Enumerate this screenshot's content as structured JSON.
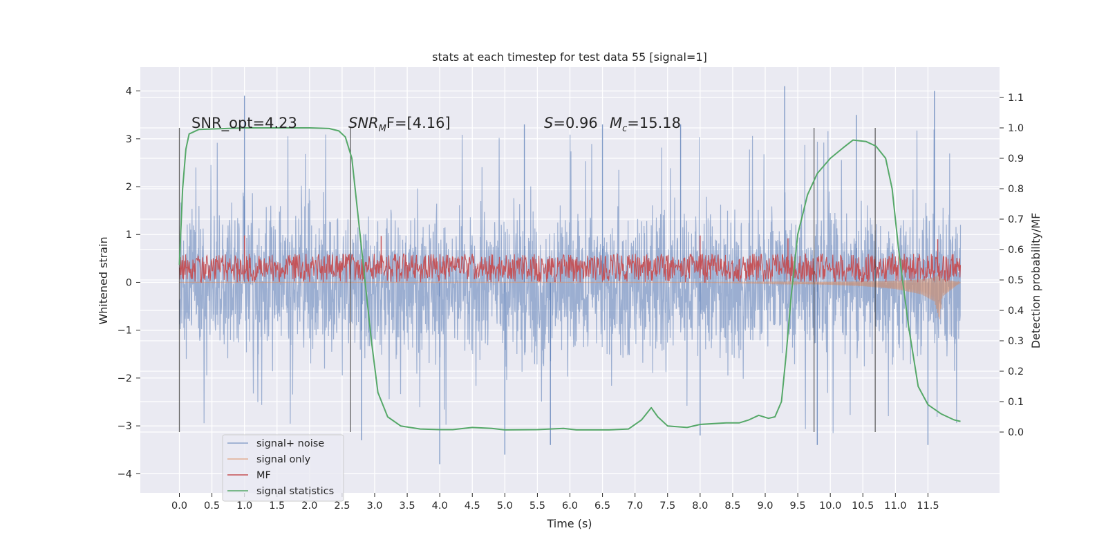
{
  "chart_data": {
    "type": "line",
    "title": "stats at each timestep for test data 55 [signal=1]",
    "xlabel": "Time (s)",
    "ylabel_left": "Whitened strain",
    "ylabel_right": "Detection probability/MF",
    "xlim": [
      -0.6,
      12.6
    ],
    "ylim_left": [
      -4.4,
      4.5
    ],
    "ylim_right": [
      -0.2,
      1.2
    ],
    "x_ticks": [
      "0.0",
      "0.5",
      "1.0",
      "1.5",
      "2.0",
      "2.5",
      "3.0",
      "3.5",
      "4.0",
      "4.5",
      "5.0",
      "5.5",
      "6.0",
      "6.5",
      "7.0",
      "7.5",
      "8.0",
      "8.5",
      "9.0",
      "9.5",
      "10.0",
      "10.5",
      "11.0",
      "11.5"
    ],
    "y_ticks_left": [
      "4",
      "3",
      "2",
      "1",
      "0",
      "−1",
      "−2",
      "−3",
      "−4"
    ],
    "y_ticks_right": [
      "1.1",
      "1.0",
      "0.9",
      "0.8",
      "0.7",
      "0.6",
      "0.5",
      "0.4",
      "0.3",
      "0.2",
      "0.1",
      "0.0"
    ],
    "grid": true,
    "background": "#eaeaf2",
    "legend_position": "lower-left",
    "annotations": {
      "snr_opt": "SNR_opt=4.23",
      "snr_mf_sym": "SNR",
      "snr_mf_sub": "M",
      "snr_mf_rest": "F=[4.16]",
      "s_sym": "S",
      "s_val": "=0.96",
      "mc_sym": "M",
      "mc_sub": "c",
      "mc_val": "=15.18"
    },
    "vertical_markers_s": [
      0.0,
      2.63,
      9.75,
      10.69
    ],
    "series": [
      {
        "name": "signal+ noise",
        "axis": "left",
        "color": "#4c72b0",
        "opacity": 0.5,
        "x_range": [
          0.0,
          12.0
        ],
        "envelope_typical": [
          -2.2,
          2.0
        ],
        "spikes": [
          [
            1.0,
            3.9
          ],
          [
            5.3,
            3.3
          ],
          [
            6.5,
            3.3
          ],
          [
            7.7,
            3.3
          ],
          [
            9.3,
            4.1
          ],
          [
            10.4,
            3.5
          ],
          [
            11.6,
            4.0
          ],
          [
            4.0,
            -3.8
          ],
          [
            5.0,
            -3.6
          ],
          [
            5.7,
            -3.4
          ],
          [
            9.8,
            -3.4
          ],
          [
            11.5,
            -3.4
          ],
          [
            2.8,
            -3.3
          ],
          [
            8.0,
            -3.2
          ]
        ]
      },
      {
        "name": "signal only",
        "axis": "left",
        "color": "#dd8452",
        "opacity": 0.5,
        "points": [
          [
            0.0,
            0.0
          ],
          [
            8.0,
            0.0
          ],
          [
            9.0,
            -0.02
          ],
          [
            10.0,
            -0.05
          ],
          [
            10.5,
            -0.08
          ],
          [
            11.0,
            -0.14
          ],
          [
            11.4,
            -0.25
          ],
          [
            11.6,
            -0.4
          ],
          [
            11.68,
            -0.8
          ],
          [
            11.72,
            -0.3
          ],
          [
            12.0,
            0.0
          ]
        ]
      },
      {
        "name": "MF",
        "axis": "left",
        "color": "#c44e52",
        "opacity": 0.95,
        "x_range": [
          0.0,
          12.0
        ],
        "baseline": 0.3,
        "band": [
          0.0,
          0.75
        ],
        "peaks": [
          [
            1.0,
            0.98
          ],
          [
            3.1,
            0.97
          ],
          [
            8.0,
            0.98
          ],
          [
            9.35,
            0.92
          ],
          [
            11.65,
            0.9
          ]
        ]
      },
      {
        "name": "signal statistics",
        "axis": "right",
        "color": "#55a868",
        "points": [
          [
            0.0,
            0.55
          ],
          [
            0.05,
            0.8
          ],
          [
            0.1,
            0.93
          ],
          [
            0.15,
            0.98
          ],
          [
            0.3,
            0.995
          ],
          [
            1.0,
            1.0
          ],
          [
            2.0,
            1.0
          ],
          [
            2.3,
            0.998
          ],
          [
            2.45,
            0.99
          ],
          [
            2.55,
            0.97
          ],
          [
            2.65,
            0.9
          ],
          [
            2.75,
            0.7
          ],
          [
            2.85,
            0.5
          ],
          [
            2.95,
            0.3
          ],
          [
            3.05,
            0.13
          ],
          [
            3.2,
            0.05
          ],
          [
            3.4,
            0.02
          ],
          [
            3.7,
            0.01
          ],
          [
            4.0,
            0.008
          ],
          [
            4.2,
            0.008
          ],
          [
            4.5,
            0.015
          ],
          [
            4.8,
            0.012
          ],
          [
            5.0,
            0.007
          ],
          [
            5.5,
            0.008
          ],
          [
            5.9,
            0.012
          ],
          [
            6.1,
            0.007
          ],
          [
            6.6,
            0.007
          ],
          [
            6.9,
            0.01
          ],
          [
            7.1,
            0.04
          ],
          [
            7.25,
            0.08
          ],
          [
            7.35,
            0.05
          ],
          [
            7.5,
            0.02
          ],
          [
            7.8,
            0.015
          ],
          [
            8.0,
            0.025
          ],
          [
            8.4,
            0.03
          ],
          [
            8.6,
            0.03
          ],
          [
            8.75,
            0.04
          ],
          [
            8.9,
            0.055
          ],
          [
            9.05,
            0.045
          ],
          [
            9.15,
            0.05
          ],
          [
            9.25,
            0.1
          ],
          [
            9.32,
            0.25
          ],
          [
            9.4,
            0.45
          ],
          [
            9.5,
            0.65
          ],
          [
            9.65,
            0.78
          ],
          [
            9.8,
            0.85
          ],
          [
            10.0,
            0.9
          ],
          [
            10.2,
            0.935
          ],
          [
            10.35,
            0.96
          ],
          [
            10.55,
            0.955
          ],
          [
            10.7,
            0.94
          ],
          [
            10.85,
            0.9
          ],
          [
            10.95,
            0.8
          ],
          [
            11.05,
            0.6
          ],
          [
            11.2,
            0.35
          ],
          [
            11.35,
            0.15
          ],
          [
            11.5,
            0.09
          ],
          [
            11.7,
            0.06
          ],
          [
            11.9,
            0.04
          ],
          [
            12.0,
            0.035
          ]
        ]
      }
    ]
  }
}
